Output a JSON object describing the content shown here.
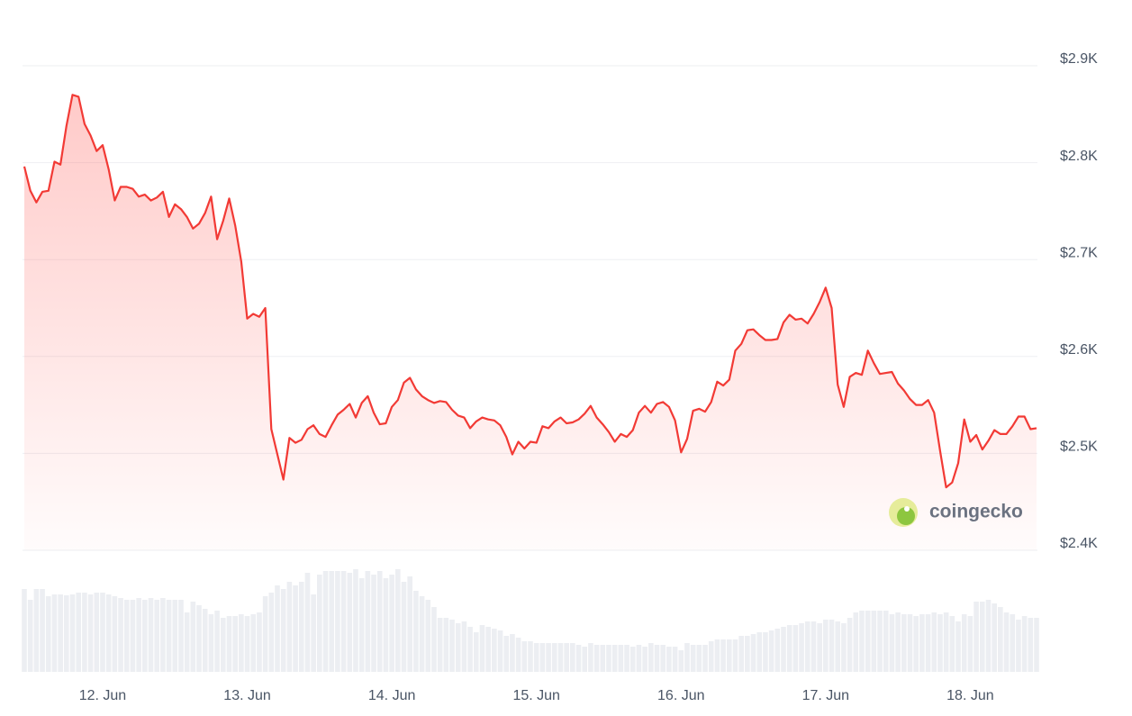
{
  "chart_data": {
    "type": "line",
    "categories": [
      null,
      null,
      null,
      null,
      null,
      null,
      null,
      null,
      null,
      null,
      null,
      null,
      null,
      "12. Jun",
      null,
      null,
      null,
      null,
      null,
      null,
      null,
      null,
      null,
      null,
      null,
      null,
      null,
      null,
      null,
      null,
      null,
      null,
      null,
      null,
      null,
      null,
      null,
      "13. Jun",
      null,
      null,
      null,
      null,
      null,
      null,
      null,
      null,
      null,
      null,
      null,
      null,
      null,
      null,
      null,
      null,
      null,
      null,
      null,
      null,
      null,
      null,
      null,
      "14. Jun",
      null,
      null,
      null,
      null,
      null,
      null,
      null,
      null,
      null,
      null,
      null,
      null,
      null,
      null,
      null,
      null,
      null,
      null,
      null,
      null,
      null,
      null,
      null,
      "15. Jun",
      null,
      null,
      null,
      null,
      null,
      null,
      null,
      null,
      null,
      null,
      null,
      null,
      null,
      null,
      null,
      null,
      null,
      null,
      null,
      null,
      null,
      null,
      null,
      "16. Jun",
      null,
      null,
      null,
      null,
      null,
      null,
      null,
      null,
      null,
      null,
      null,
      null,
      null,
      null,
      null,
      null,
      null,
      null,
      null,
      null,
      null,
      null,
      null,
      "17. Jun",
      null,
      null,
      null,
      null,
      null,
      null,
      null,
      null,
      null,
      null,
      null,
      null,
      null,
      null,
      null,
      null,
      null,
      null,
      null,
      null,
      null,
      null,
      null,
      "18. Jun",
      null,
      null,
      null,
      null,
      null,
      null,
      null,
      null,
      null,
      null,
      null
    ],
    "values": [
      2796,
      2771,
      2759,
      2770,
      2771,
      2801,
      2798,
      2838,
      2870,
      2868,
      2840,
      2828,
      2812,
      2818,
      2793,
      2761,
      2775,
      2775,
      2773,
      2765,
      2767,
      2761,
      2764,
      2770,
      2744,
      2757,
      2752,
      2744,
      2732,
      2737,
      2748,
      2765,
      2721,
      2740,
      2763,
      2735,
      2698,
      2639,
      2644,
      2641,
      2650,
      2525,
      2499,
      2473,
      2516,
      2511,
      2514,
      2525,
      2529,
      2520,
      2517,
      2529,
      2540,
      2545,
      2551,
      2537,
      2552,
      2559,
      2542,
      2530,
      2531,
      2548,
      2555,
      2573,
      2578,
      2566,
      2559,
      2555,
      2552,
      2554,
      2553,
      2545,
      2539,
      2537,
      2526,
      2533,
      2537,
      2535,
      2534,
      2529,
      2517,
      2499,
      2512,
      2505,
      2512,
      2511,
      2528,
      2526,
      2533,
      2537,
      2531,
      2532,
      2535,
      2541,
      2549,
      2537,
      2530,
      2522,
      2512,
      2520,
      2517,
      2524,
      2542,
      2549,
      2542,
      2551,
      2553,
      2548,
      2534,
      2501,
      2515,
      2544,
      2546,
      2543,
      2553,
      2574,
      2570,
      2576,
      2606,
      2613,
      2627,
      2628,
      2622,
      2617,
      2617,
      2618,
      2635,
      2643,
      2638,
      2639,
      2634,
      2644,
      2656,
      2671,
      2650,
      2571,
      2548,
      2579,
      2583,
      2581,
      2606,
      2593,
      2582,
      2583,
      2584,
      2572,
      2565,
      2556,
      2550,
      2550,
      2555,
      2542,
      2502,
      2465,
      2470,
      2490,
      2535,
      2512,
      2519,
      2504,
      2513,
      2524,
      2520,
      2520,
      2528,
      2538,
      2538,
      2525,
      2526
    ],
    "volume": [
      92,
      80,
      92,
      92,
      84,
      86,
      86,
      85,
      86,
      88,
      88,
      86,
      88,
      88,
      86,
      84,
      82,
      80,
      80,
      82,
      80,
      82,
      80,
      82,
      80,
      80,
      80,
      66,
      78,
      74,
      70,
      64,
      68,
      60,
      62,
      62,
      64,
      62,
      64,
      66,
      84,
      88,
      96,
      92,
      100,
      96,
      100,
      110,
      86,
      108,
      112,
      112,
      112,
      112,
      110,
      114,
      104,
      112,
      108,
      112,
      104,
      108,
      114,
      100,
      106,
      90,
      84,
      80,
      72,
      60,
      60,
      58,
      54,
      56,
      50,
      44,
      52,
      50,
      48,
      46,
      40,
      42,
      38,
      34,
      34,
      32,
      32,
      32,
      32,
      32,
      32,
      32,
      30,
      28,
      32,
      30,
      30,
      30,
      30,
      30,
      30,
      28,
      30,
      28,
      32,
      30,
      30,
      28,
      28,
      24,
      32,
      30,
      30,
      30,
      34,
      36,
      36,
      36,
      36,
      40,
      40,
      42,
      44,
      44,
      46,
      48,
      50,
      52,
      52,
      54,
      56,
      56,
      54,
      58,
      58,
      56,
      54,
      60,
      66,
      68,
      68,
      68,
      68,
      68,
      64,
      66,
      64,
      64,
      62,
      64,
      64,
      66,
      64,
      66,
      62,
      56,
      64,
      62,
      78,
      78,
      80,
      76,
      72,
      66,
      64,
      58,
      62,
      60,
      60
    ],
    "color": "#f23a35",
    "volume_color": "#eceef2",
    "ylim": [
      2400,
      2900
    ],
    "yticks": [
      {
        "value": 2400,
        "label": "$2.4K"
      },
      {
        "value": 2500,
        "label": "$2.5K"
      },
      {
        "value": 2600,
        "label": "$2.6K"
      },
      {
        "value": 2700,
        "label": "$2.7K"
      },
      {
        "value": 2800,
        "label": "$2.8K"
      },
      {
        "value": 2900,
        "label": "$2.9K"
      }
    ],
    "grid": true,
    "watermark": "coingecko"
  }
}
